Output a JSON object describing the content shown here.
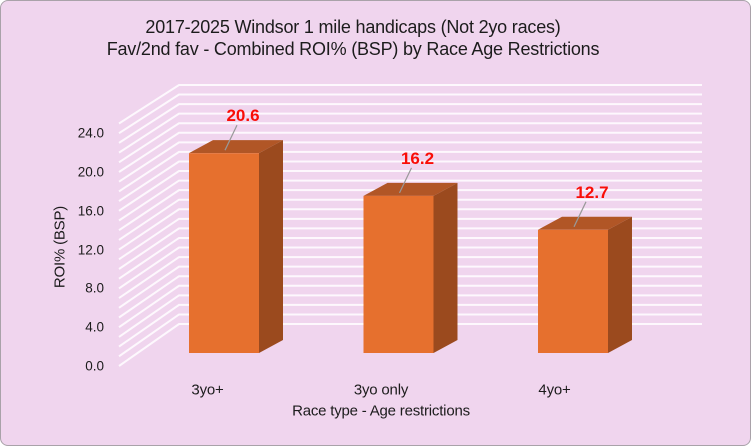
{
  "chart_data": {
    "type": "bar",
    "style": "3d-column",
    "title_line1": "2017-2025 Windsor 1 mile handicaps (Not 2yo races)",
    "title_line2": "Fav/2nd fav - Combined ROI% (BSP) by Race Age Restrictions",
    "categories": [
      "3yo+",
      "3yo only",
      "4yo+"
    ],
    "values": [
      20.6,
      16.2,
      12.7
    ],
    "data_labels": [
      "20.6",
      "16.2",
      "12.7"
    ],
    "xlabel": "Race type - Age restrictions",
    "ylabel": "ROI% (BSP)",
    "ylim": [
      0,
      25
    ],
    "major_unit": 4.0,
    "minor_unit": 1.0,
    "y_tick_labels": [
      "0.0",
      "4.0",
      "8.0",
      "12.0",
      "16.0",
      "20.0",
      "24.0"
    ],
    "legend": "none",
    "grid": "minor horizontal gridlines drawn as light stripes on 3D back and side walls",
    "colors": {
      "background": "#f0d5ee",
      "wall_stripe": "#fdf8fd",
      "bar_front": "#e6702e",
      "bar_top": "#b15626",
      "bar_side": "#9b4a1e",
      "data_label": "#f90d07",
      "leader_line": "#999999",
      "text": "#1c1c1c",
      "frame_border": "#a9a2a9"
    }
  }
}
